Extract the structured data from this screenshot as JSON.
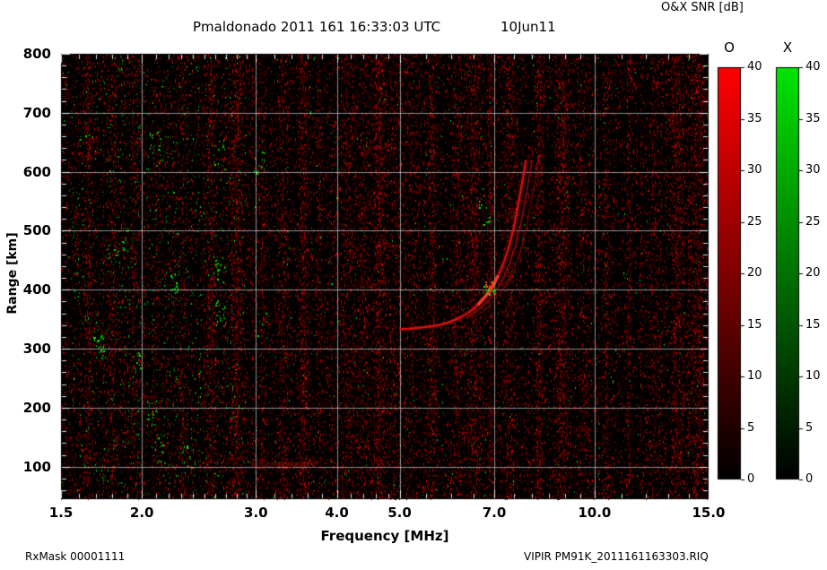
{
  "header": {
    "title": "Pmaldonado 2011 161 16:33:03 UTC",
    "date_label": "10Jun11",
    "colorbar_title": "O&X SNR [dB]"
  },
  "footer": {
    "rx_mask": "RxMask 00001111",
    "file_label": "VIPIR  PM91K_2011161163303.RIQ"
  },
  "chart_data": {
    "type": "heatmap",
    "title": "Pmaldonado 2011 161 16:33:03 UTC 10Jun11",
    "xlabel": "Frequency [MHz]",
    "ylabel": "Range [km]",
    "x_scale": "log",
    "xlim": [
      1.5,
      15.0
    ],
    "ylim": [
      45,
      800
    ],
    "x_ticks": [
      1.5,
      2.0,
      3.0,
      4.0,
      5.0,
      7.0,
      10.0,
      15.0
    ],
    "x_tick_labels": [
      "1.5",
      "2.0",
      "3.0",
      "4.0",
      "5.0",
      "7.0",
      "10.0",
      "15.0"
    ],
    "y_ticks": [
      100,
      200,
      300,
      400,
      500,
      600,
      700,
      800
    ],
    "grid": true,
    "background": "#000000",
    "colorbars": [
      {
        "mode": "O",
        "color_low": "#000000",
        "color_high": "#ff0000",
        "min": 0,
        "max": 40,
        "ticks": [
          0,
          5,
          10,
          15,
          20,
          25,
          30,
          35,
          40
        ],
        "units": "dB"
      },
      {
        "mode": "X",
        "color_low": "#000000",
        "color_high": "#00e400",
        "min": 0,
        "max": 40,
        "ticks": [
          0,
          5,
          10,
          15,
          20,
          25,
          30,
          35,
          40
        ],
        "units": "dB"
      }
    ],
    "traces": [
      {
        "name": "F-region O-mode main trace",
        "color": "#e21212",
        "points_mhz_km": [
          [
            5.0,
            333
          ],
          [
            5.2,
            334
          ],
          [
            5.4,
            336
          ],
          [
            5.6,
            338
          ],
          [
            5.8,
            341
          ],
          [
            6.0,
            346
          ],
          [
            6.2,
            353
          ],
          [
            6.4,
            362
          ],
          [
            6.6,
            374
          ],
          [
            6.8,
            390
          ],
          [
            6.95,
            405
          ],
          [
            7.1,
            424
          ],
          [
            7.25,
            448
          ],
          [
            7.4,
            478
          ],
          [
            7.5,
            505
          ],
          [
            7.6,
            538
          ],
          [
            7.7,
            572
          ],
          [
            7.78,
            600
          ],
          [
            7.83,
            620
          ]
        ]
      },
      {
        "name": "F-region X-mode / offset echo",
        "color": "#b01010",
        "points_mhz_km": [
          [
            6.5,
            368
          ],
          [
            6.7,
            382
          ],
          [
            6.9,
            398
          ],
          [
            7.05,
            416
          ],
          [
            7.2,
            440
          ],
          [
            7.35,
            468
          ],
          [
            7.5,
            500
          ],
          [
            7.62,
            535
          ],
          [
            7.72,
            568
          ],
          [
            7.8,
            598
          ],
          [
            7.86,
            618
          ]
        ]
      },
      {
        "name": "E-region echo smear near 100 km",
        "color": "#8a1408",
        "points_mhz_km": [
          [
            2.95,
            103
          ],
          [
            3.2,
            104
          ],
          [
            3.5,
            105
          ],
          [
            3.75,
            106
          ]
        ]
      }
    ],
    "bright_spot": {
      "mhz": [
        6.75,
        7.05
      ],
      "km": [
        392,
        418
      ],
      "note": "strongest echo region, mixed O (red) and X (green) returns"
    },
    "noise": {
      "red_band_centers_mhz": [
        1.65,
        1.8,
        1.95,
        2.1,
        2.3,
        2.55,
        2.8,
        3.05,
        3.3,
        3.55,
        3.75,
        3.95,
        4.15,
        4.4,
        4.65,
        4.9,
        5.2,
        5.6,
        6.1,
        6.5,
        6.9,
        7.4,
        8.2,
        8.9,
        9.6,
        10.4,
        11.3,
        12.4,
        13.4,
        14.4
      ],
      "green_speckle_band_mhz": [
        1.55,
        2.9
      ],
      "snr_range_db": [
        0,
        40
      ]
    }
  }
}
